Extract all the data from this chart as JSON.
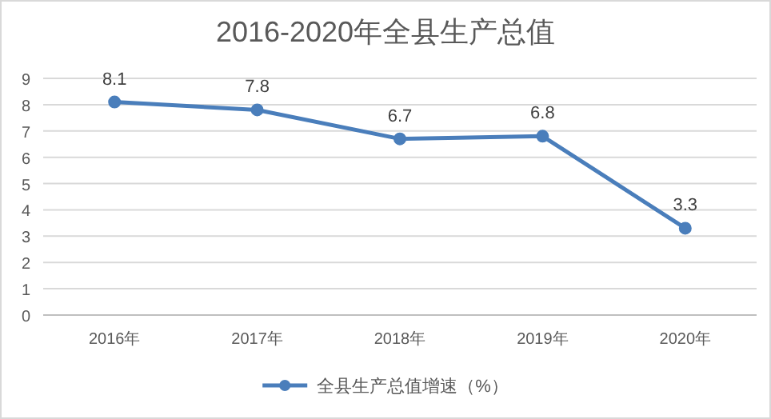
{
  "chart_data": {
    "type": "line",
    "title": "2016-2020年全县生产总值",
    "categories": [
      "2016年",
      "2017年",
      "2018年",
      "2019年",
      "2020年"
    ],
    "series": [
      {
        "name": "全县生产总值增速（%）",
        "color": "#4a7ebb",
        "values": [
          8.1,
          7.8,
          6.7,
          6.8,
          3.3
        ]
      }
    ],
    "ylim": [
      0,
      9
    ],
    "yticks": [
      0,
      1,
      2,
      3,
      4,
      5,
      6,
      7,
      8,
      9
    ],
    "grid": "y",
    "legend": "bottom",
    "marker": "circle",
    "line_style": "solid",
    "data_labels": true
  }
}
